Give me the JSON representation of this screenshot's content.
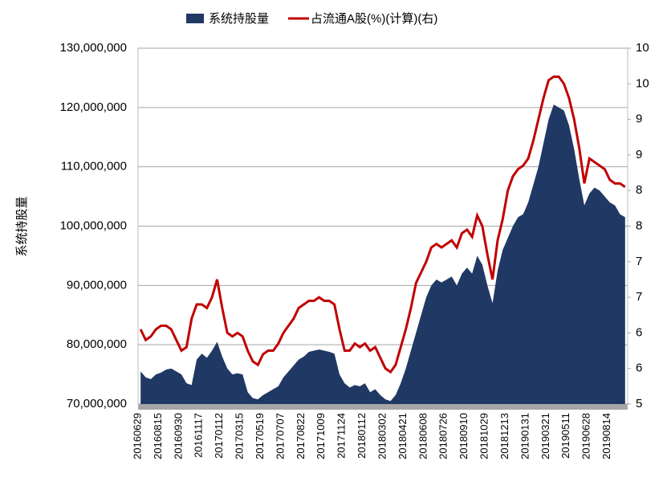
{
  "chart_data": {
    "type": "area-line",
    "y_label": "系统持股量",
    "categories": [
      "20160629",
      null,
      null,
      null,
      "20160815",
      null,
      null,
      null,
      "20160930",
      null,
      null,
      null,
      "20161117",
      null,
      null,
      null,
      "20170112",
      null,
      null,
      null,
      "20170315",
      null,
      null,
      null,
      "20170519",
      null,
      null,
      null,
      "20170707",
      null,
      null,
      null,
      "20170822",
      null,
      null,
      null,
      "20171009",
      null,
      null,
      null,
      "20171124",
      null,
      null,
      null,
      "20180112",
      null,
      null,
      null,
      "20180302",
      null,
      null,
      null,
      "20180421",
      null,
      null,
      null,
      "20180608",
      null,
      null,
      null,
      "20180726",
      null,
      null,
      null,
      "20180910",
      null,
      null,
      null,
      "20181029",
      null,
      null,
      null,
      "20181213",
      null,
      null,
      null,
      "20190131",
      null,
      null,
      null,
      "20190321",
      null,
      null,
      null,
      "20190511",
      null,
      null,
      null,
      "20190628",
      null,
      null,
      null,
      "20190814",
      null,
      null,
      null
    ],
    "series": [
      {
        "name": "系统持股量",
        "type": "area",
        "color": "#203864",
        "values": [
          75500000,
          74500000,
          74200000,
          75000000,
          75300000,
          75800000,
          76000000,
          75500000,
          75000000,
          73500000,
          73200000,
          77500000,
          78500000,
          77800000,
          79000000,
          80500000,
          78000000,
          76000000,
          75000000,
          75200000,
          75000000,
          72000000,
          71000000,
          70800000,
          71500000,
          72000000,
          72500000,
          73000000,
          74500000,
          75500000,
          76500000,
          77500000,
          78000000,
          78800000,
          79000000,
          79200000,
          79000000,
          78800000,
          78500000,
          75000000,
          73500000,
          72800000,
          73200000,
          73000000,
          73500000,
          72000000,
          72500000,
          71500000,
          70800000,
          70500000,
          71500000,
          73500000,
          76000000,
          79000000,
          82000000,
          85000000,
          88000000,
          90000000,
          91000000,
          90500000,
          91000000,
          91500000,
          90000000,
          92000000,
          93000000,
          92000000,
          95000000,
          93500000,
          90000000,
          87000000,
          92500000,
          96000000,
          98000000,
          100000000,
          101500000,
          102000000,
          104000000,
          107000000,
          110000000,
          114000000,
          118000000,
          120500000,
          120000000,
          119500000,
          117000000,
          113000000,
          108000000,
          103500000,
          105500000,
          106500000,
          106000000,
          105000000,
          104000000,
          103500000,
          102000000,
          101500000
        ]
      },
      {
        "name": "占流通A股(%)(计算)(右)",
        "type": "line",
        "axis": "y2",
        "color": "#c00000",
        "values": [
          6.05,
          5.9,
          5.95,
          6.05,
          6.1,
          6.1,
          6.05,
          5.9,
          5.75,
          5.8,
          6.2,
          6.4,
          6.4,
          6.35,
          6.5,
          6.75,
          6.35,
          6.0,
          5.95,
          6.0,
          5.95,
          5.75,
          5.6,
          5.55,
          5.7,
          5.75,
          5.75,
          5.85,
          6.0,
          6.1,
          6.2,
          6.35,
          6.4,
          6.45,
          6.45,
          6.5,
          6.45,
          6.45,
          6.4,
          6.05,
          5.75,
          5.75,
          5.85,
          5.8,
          5.85,
          5.75,
          5.8,
          5.65,
          5.5,
          5.45,
          5.55,
          5.8,
          6.05,
          6.35,
          6.7,
          6.85,
          7.0,
          7.2,
          7.25,
          7.2,
          7.25,
          7.3,
          7.2,
          7.4,
          7.45,
          7.35,
          7.65,
          7.5,
          7.1,
          6.75,
          7.3,
          7.6,
          8.0,
          8.2,
          8.3,
          8.35,
          8.45,
          8.7,
          9.0,
          9.3,
          9.55,
          9.6,
          9.6,
          9.5,
          9.3,
          9.0,
          8.6,
          8.1,
          8.45,
          8.4,
          8.35,
          8.3,
          8.15,
          8.1,
          8.1,
          8.05
        ]
      }
    ],
    "ylim": [
      70000000,
      130000000
    ],
    "yticks": [
      {
        "value": 70000000,
        "label": "70,000,000"
      },
      {
        "value": 80000000,
        "label": "80,000,000"
      },
      {
        "value": 90000000,
        "label": "90,000,000"
      },
      {
        "value": 100000000,
        "label": "100,000,000"
      },
      {
        "value": 110000000,
        "label": "110,000,000"
      },
      {
        "value": 120000000,
        "label": "120,000,000"
      },
      {
        "value": 130000000,
        "label": "130,000,000"
      }
    ],
    "y2lim": [
      5,
      10
    ],
    "y2ticks": [
      5,
      {
        "value": 5.5,
        "label": "6"
      },
      6,
      {
        "value": 6.5,
        "label": "7"
      },
      7,
      {
        "value": 7.5,
        "label": "8"
      },
      8,
      {
        "value": 8.5,
        "label": "9"
      },
      9,
      {
        "value": 9.5,
        "label": "10"
      },
      10
    ],
    "grid": true
  }
}
